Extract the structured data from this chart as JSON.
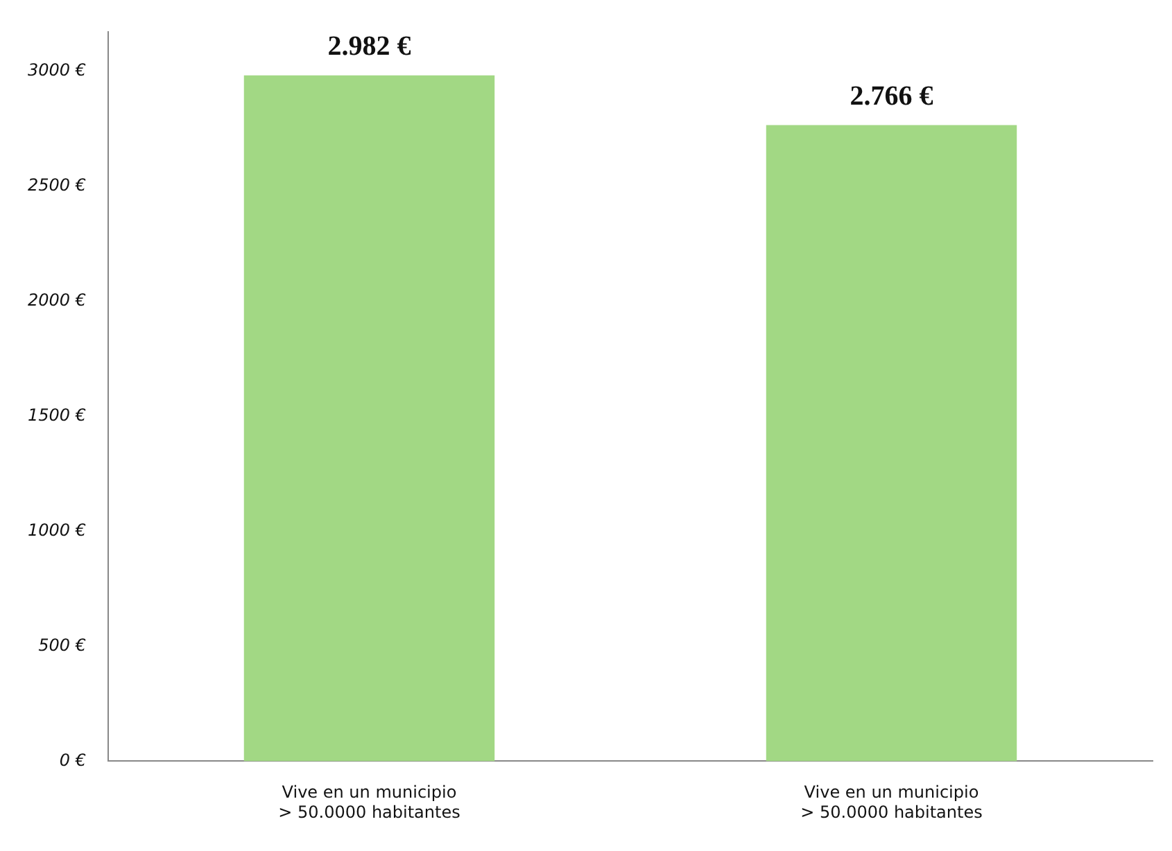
{
  "chart_data": {
    "type": "bar",
    "categories": [
      "Vive en un municipio\n> 50.0000 habitantes",
      "Vive en un municipio\n> 50.0000 habitantes"
    ],
    "values": [
      2982,
      2766
    ],
    "color": "#a2d884",
    "value_labels": [
      "2.982 €",
      "2.766 €"
    ],
    "ylim": [
      0,
      3170
    ],
    "yticks": [
      {
        "value": 0,
        "label": "0 €"
      },
      {
        "value": 500,
        "label": "500 €"
      },
      {
        "value": 1000,
        "label": "1000 €"
      },
      {
        "value": 1500,
        "label": "1500 €"
      },
      {
        "value": 2000,
        "label": "2000 €"
      },
      {
        "value": 2500,
        "label": "2500 €"
      },
      {
        "value": 3000,
        "label": "3000 €"
      }
    ],
    "grid": false,
    "legend": false
  }
}
